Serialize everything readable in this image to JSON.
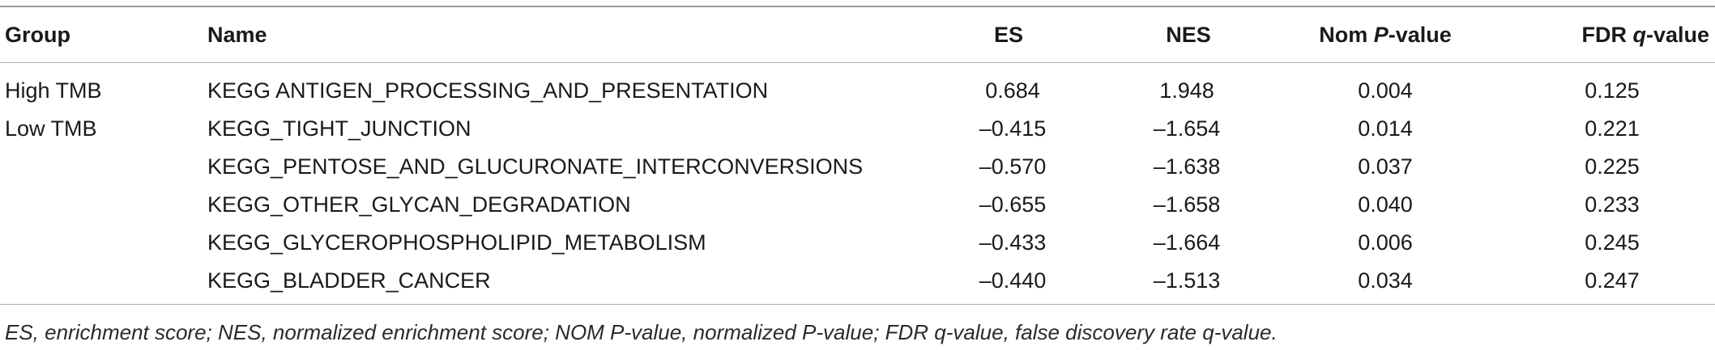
{
  "table": {
    "headers": {
      "group": "Group",
      "name": "Name",
      "es": "ES",
      "nes": "NES",
      "nom_prefix": "Nom ",
      "nom_italic": "P",
      "nom_suffix": "-value",
      "fdr_prefix": "FDR ",
      "fdr_italic": "q",
      "fdr_suffix": "-value"
    },
    "rows": [
      {
        "group": "High TMB",
        "name": "KEGG ANTIGEN_PROCESSING_AND_PRESENTATION",
        "es": "0.684",
        "nes": "1.948",
        "nom": "0.004",
        "fdr": "0.125"
      },
      {
        "group": "Low TMB",
        "name": "KEGG_TIGHT_JUNCTION",
        "es": "–0.415",
        "nes": "–1.654",
        "nom": "0.014",
        "fdr": "0.221"
      },
      {
        "group": "",
        "name": "KEGG_PENTOSE_AND_GLUCURONATE_INTERCONVERSIONS",
        "es": "–0.570",
        "nes": "–1.638",
        "nom": "0.037",
        "fdr": "0.225"
      },
      {
        "group": "",
        "name": "KEGG_OTHER_GLYCAN_DEGRADATION",
        "es": "–0.655",
        "nes": "–1.658",
        "nom": "0.040",
        "fdr": "0.233"
      },
      {
        "group": "",
        "name": "KEGG_GLYCEROPHOSPHOLIPID_METABOLISM",
        "es": "–0.433",
        "nes": "–1.664",
        "nom": "0.006",
        "fdr": "0.245"
      },
      {
        "group": "",
        "name": "KEGG_BLADDER_CANCER",
        "es": "–0.440",
        "nes": "–1.513",
        "nom": "0.034",
        "fdr": "0.247"
      }
    ]
  },
  "footnote": "ES, enrichment score; NES, normalized enrichment score; NOM P-value, normalized P-value; FDR q-value, false discovery rate q-value."
}
